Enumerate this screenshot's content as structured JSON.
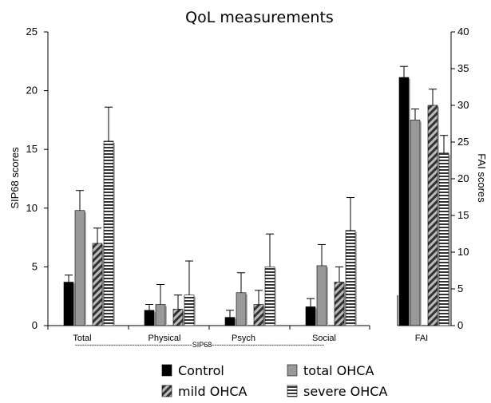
{
  "chart_data": {
    "type": "bar",
    "title": "QoL measurements",
    "left_axis": {
      "label": "SIP68 scores",
      "range": [
        0,
        25
      ],
      "ticks": [
        "0",
        "5",
        "10",
        "15",
        "20",
        "25"
      ]
    },
    "right_axis": {
      "label": "FAI scores",
      "range": [
        0,
        40
      ],
      "ticks": [
        "0",
        "5",
        "10",
        "15",
        "20",
        "25",
        "30",
        "35",
        "40"
      ]
    },
    "group_label": "SIP68",
    "group_label_line": "-------------------------------------------------SIP68-----------------------------------------------",
    "categories": [
      "Total",
      "Physical",
      "Psych",
      "Social",
      "FAI"
    ],
    "category_axis": [
      "left",
      "left",
      "left",
      "left",
      "right"
    ],
    "series": [
      {
        "name": "Control",
        "pattern": "solid-black",
        "color": "#000000",
        "values": [
          3.7,
          1.3,
          0.7,
          1.6,
          33.8
        ],
        "errors": [
          0.6,
          0.5,
          0.6,
          0.7,
          1.5
        ]
      },
      {
        "name": "total OHCA",
        "pattern": "solid-gray",
        "color": "#999999",
        "values": [
          9.8,
          1.8,
          2.8,
          5.1,
          28.0
        ],
        "errors": [
          1.7,
          1.7,
          1.7,
          1.8,
          1.5
        ]
      },
      {
        "name": "mild OHCA",
        "pattern": "diagonal-stripes",
        "color": "#555555",
        "values": [
          7.0,
          1.4,
          1.8,
          3.7,
          30.0
        ],
        "errors": [
          1.3,
          1.2,
          1.2,
          1.3,
          2.2
        ]
      },
      {
        "name": "severe OHCA",
        "pattern": "horizontal-stripes",
        "color": "#333333",
        "values": [
          15.7,
          2.6,
          5.0,
          8.1,
          23.5
        ],
        "errors": [
          2.9,
          2.9,
          2.8,
          2.8,
          2.4
        ]
      }
    ],
    "legend_position": "bottom",
    "grid": false
  }
}
